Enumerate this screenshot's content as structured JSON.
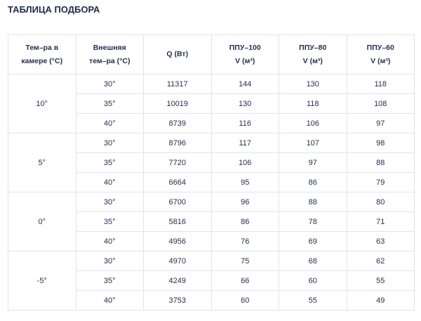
{
  "title": "ТАБЛИЦА ПОДБОРА",
  "headers": [
    [
      "Тем–ра в",
      "камере (°C)"
    ],
    [
      "Внешняя",
      "тем–ра (°C)"
    ],
    [
      "Q (Вт)",
      ""
    ],
    [
      "ППУ–100",
      "V (м³)"
    ],
    [
      "ППУ–80",
      "V (м³)"
    ],
    [
      "ППУ–60",
      "V (м³)"
    ]
  ],
  "groups": [
    {
      "chamber": "10°",
      "rows": [
        [
          "30°",
          "11317",
          "144",
          "130",
          "118"
        ],
        [
          "35°",
          "10019",
          "130",
          "118",
          "108"
        ],
        [
          "40°",
          "8739",
          "116",
          "106",
          "97"
        ]
      ]
    },
    {
      "chamber": "5°",
      "rows": [
        [
          "30°",
          "8796",
          "117",
          "107",
          "98"
        ],
        [
          "35°",
          "7720",
          "106",
          "97",
          "88"
        ],
        [
          "40°",
          "6664",
          "95",
          "86",
          "79"
        ]
      ]
    },
    {
      "chamber": "0°",
      "rows": [
        [
          "30°",
          "6700",
          "96",
          "88",
          "80"
        ],
        [
          "35°",
          "5816",
          "86",
          "78",
          "71"
        ],
        [
          "40°",
          "4956",
          "76",
          "69",
          "63"
        ]
      ]
    },
    {
      "chamber": "-5°",
      "rows": [
        [
          "30°",
          "4970",
          "75",
          "68",
          "62"
        ],
        [
          "35°",
          "4249",
          "66",
          "60",
          "55"
        ],
        [
          "40°",
          "3753",
          "60",
          "55",
          "49"
        ]
      ]
    }
  ]
}
